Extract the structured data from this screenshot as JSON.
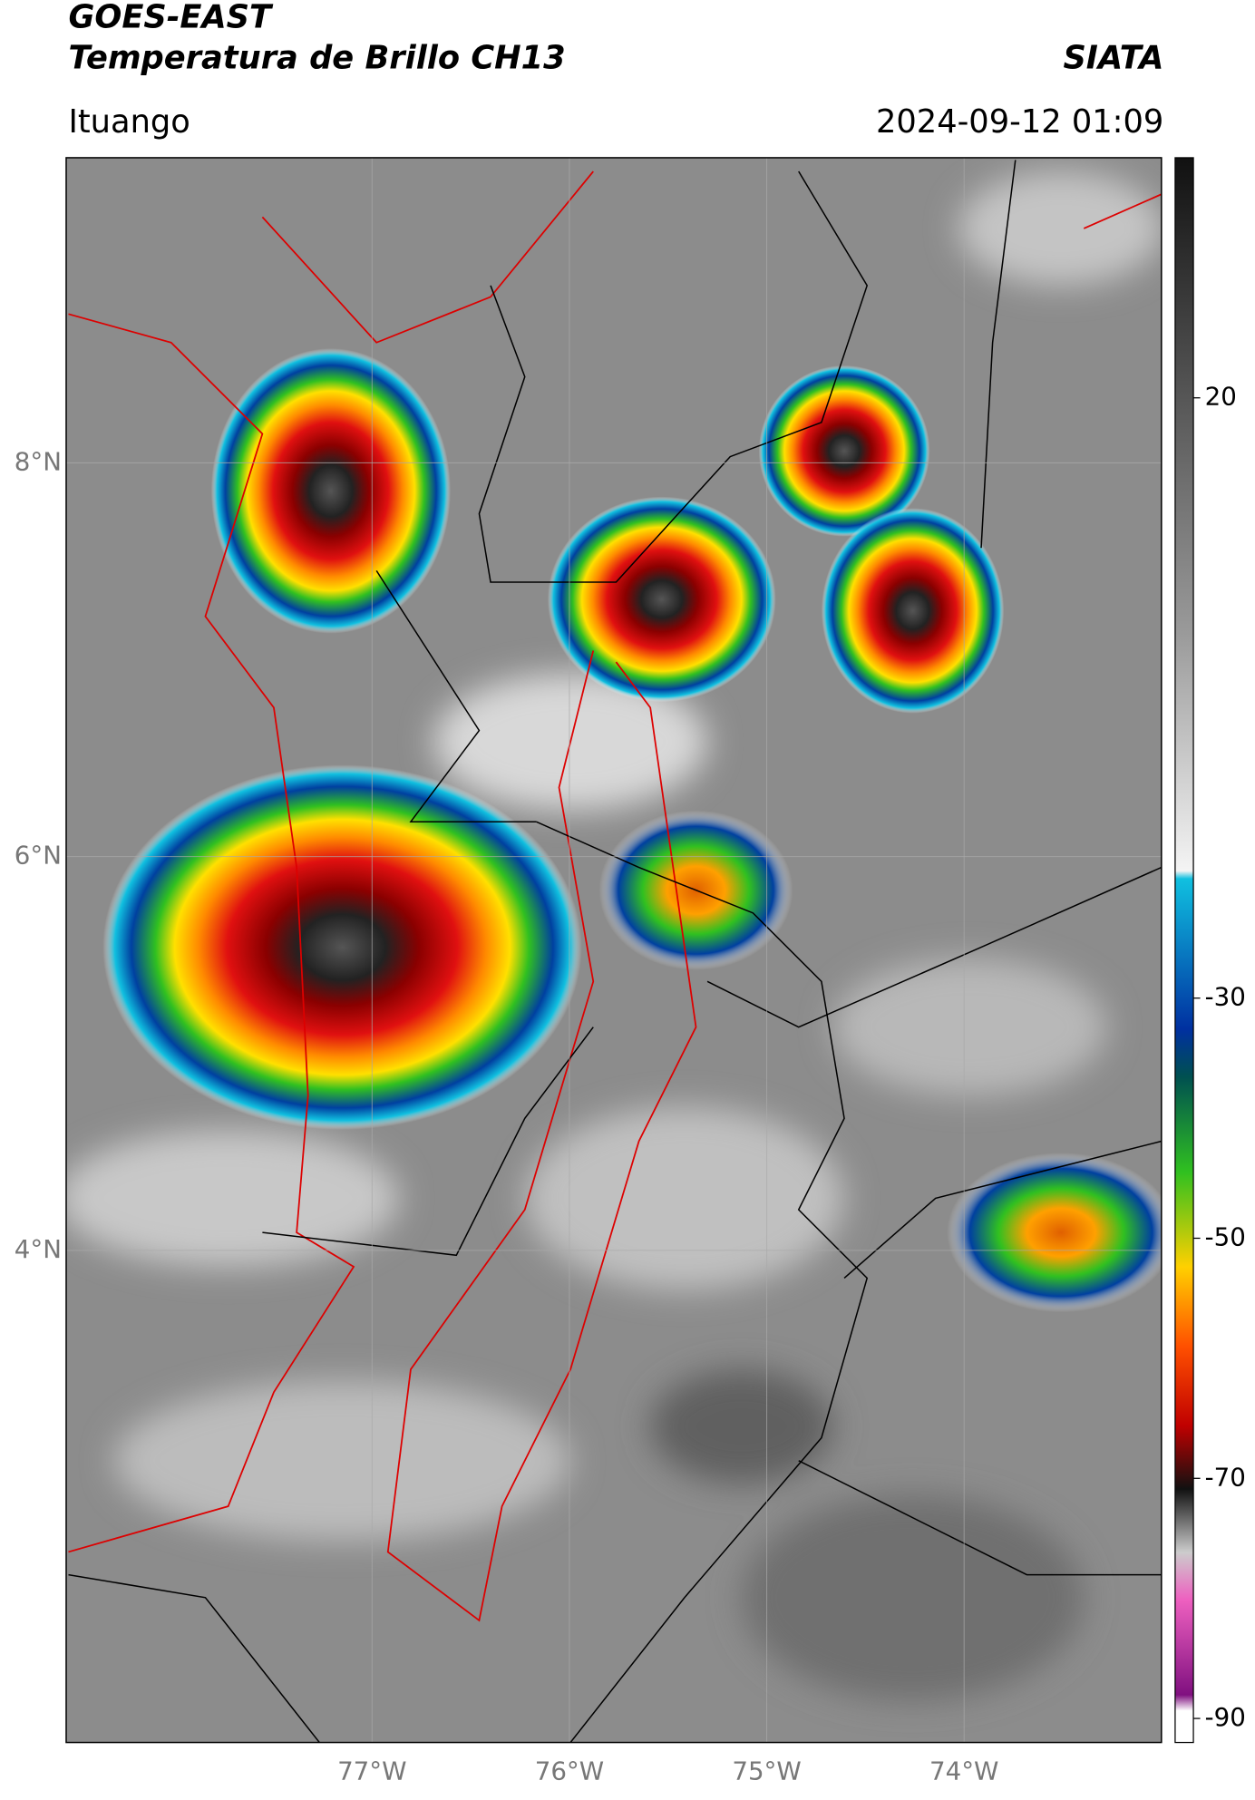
{
  "header": {
    "title": "GOES-EAST",
    "subtitle": "Temperatura de Brillo CH13",
    "source": "SIATA",
    "location": "Ituango",
    "datetime": "2024-09-12 01:09"
  },
  "map": {
    "xlim": [
      -78.55,
      -73.0
    ],
    "ylim": [
      1.5,
      9.55
    ],
    "xticks": [
      {
        "value": -77,
        "label": "77°W"
      },
      {
        "value": -76,
        "label": "76°W"
      },
      {
        "value": -75,
        "label": "75°W"
      },
      {
        "value": -74,
        "label": "74°W"
      }
    ],
    "yticks": [
      {
        "value": 8,
        "label": "8°N"
      },
      {
        "value": 6,
        "label": "6°N"
      },
      {
        "value": 4,
        "label": "4°N"
      }
    ]
  },
  "colorbar": {
    "lim": [
      -92,
      40
    ],
    "ticks": [
      20,
      -30,
      -50,
      -70,
      -90
    ]
  }
}
